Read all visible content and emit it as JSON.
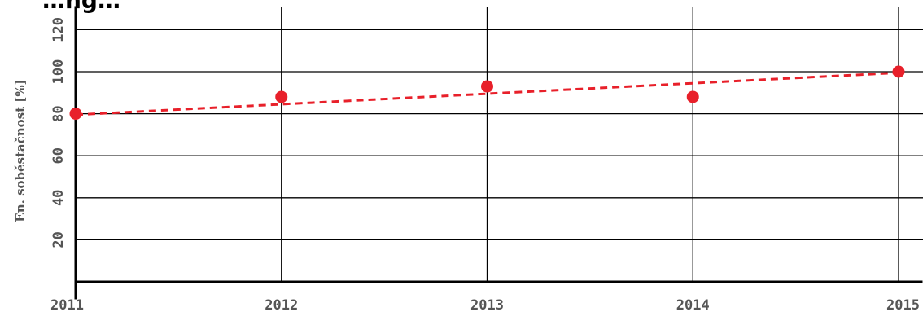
{
  "chart_data": {
    "type": "scatter",
    "title": "…ng…",
    "xlabel": "",
    "ylabel": "En. soběstačnost [%]",
    "x": [
      2011,
      2012,
      2013,
      2014,
      2015
    ],
    "x_ticks": [
      "2011",
      "2012",
      "2013",
      "2014",
      "2015"
    ],
    "y_ticks": [
      "20",
      "40",
      "60",
      "80",
      "100",
      "120"
    ],
    "xlim": [
      2011,
      2015
    ],
    "ylim": [
      0,
      120
    ],
    "grid": true,
    "series": [
      {
        "type": "scatter",
        "values": [
          80,
          88,
          93,
          88,
          100
        ],
        "color": "#e8202a"
      }
    ],
    "trendline": {
      "style": "dashed",
      "color": "#e8202a",
      "x": [
        2011,
        2015
      ],
      "values": [
        79.5,
        99.5
      ]
    }
  }
}
